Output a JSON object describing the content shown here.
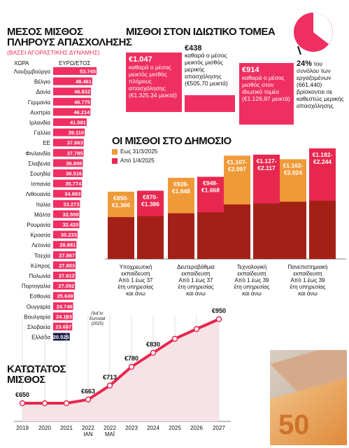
{
  "colors": {
    "pink": "#ef2f62",
    "orange": "#ef9a38",
    "darkred": "#a32017",
    "barpink": "#e8274f",
    "blue": "#1a1a4a"
  },
  "left_panel": {
    "title_line1": "ΜΕΣΟΣ ΜΙΣΘΟΣ",
    "title_line2": "ΠΛΗΡΟΥΣ ΑΠΑΣΧΟΛΗΣΗΣ",
    "subtitle": "(ΒΑΣΕΙ ΑΓΟΡΑΣΤΙΚΗΣ ΔΥΝΑΜΗΣ)",
    "col_country": "ΧΩΡΑ",
    "col_value": "ΕΥΡΩ/ΕΤΟΣ",
    "source_label": "ΠΗΓΗ:",
    "source_name": "Eurostat",
    "source_year": "(2025)"
  },
  "private_panel": {
    "title": "ΜΙΣΘΟΙ ΣΤΟΝ ΙΔΙΩΤΙΚΟ ΤΟΜΕΑ",
    "box1_value": "€1.047",
    "box1_text": "καθαρά ο μέσος μεικτός μισθός πλήρους απασχόλησης (€1.325,34 μεικτά)",
    "box2_value": "€438",
    "box2_text": "καθαρά ο μέσος μεικτός μισθός μερικής απασχόλησης (€505,70 μεικτά)",
    "box3_value": "€914",
    "box3_text": "καθαρά ο μέσος μισθός στον ιδιωτικό τομέα (€1.126,97 μεικτά)",
    "pct_value": "24%",
    "pct_text": "του συνόλου των εργαζομένων (661.440) βρίσκονται σε καθεστώς μερικής απασχόλησης"
  },
  "public_panel": {
    "title": "ΟΙ ΜΙΣΘΟΙ ΣΤΟ ΔΗΜΟΣΙΟ",
    "legend_until": "Εως 31/3/2025",
    "legend_from": "Από 1/4/2025"
  },
  "min_wage_panel": {
    "title_line1": "ΚΑΤΩΤΑΤΟΣ",
    "title_line2": "ΜΙΣΘΟΣ"
  },
  "chart_data": [
    {
      "type": "bar",
      "orientation": "horizontal",
      "categories": [
        "Λουξεμβούργο",
        "Βέλγιο",
        "Δανία",
        "Γερμανία",
        "Αυστρία",
        "Ιρλανδία",
        "Γαλλία",
        "ΕΕ",
        "Φινλανδία",
        "Σλοβενία",
        "Σουηδία",
        "Ισπανία",
        "Λιθουανία",
        "Ιταλία",
        "Μάλτα",
        "Ρουμανία",
        "Κροατία",
        "Λετονία",
        "Τσεχία",
        "Κύπρος",
        "Πολωνία",
        "Πορτογαλία",
        "Εσθονία",
        "Ουγγαρία",
        "Βουλγαρία",
        "Σλοβακία",
        "Ελλάδα"
      ],
      "labels": [
        "53.745",
        "48.461",
        "46.832",
        "46.775",
        "46.214",
        "41.581",
        "39.110",
        "37.863",
        "37.785",
        "36.806",
        "36.516",
        "35.774",
        "34.893",
        "33.273",
        "32.508",
        "32.420",
        "30.233",
        "28.881",
        "27.867",
        "27.803",
        "27.612",
        "27.092",
        "25.649",
        "24.746",
        "24.193",
        "23.647",
        "20.525"
      ],
      "values": [
        53745,
        48461,
        46832,
        46775,
        46214,
        41581,
        39110,
        37863,
        37785,
        36806,
        36516,
        35774,
        34893,
        33273,
        32508,
        32420,
        30233,
        28881,
        27867,
        27803,
        27612,
        27092,
        25649,
        24746,
        24193,
        23647,
        20525
      ],
      "xlim": [
        0,
        53745
      ]
    },
    {
      "type": "bar",
      "categories": [
        "Υποχρεωτική εκπαίδευση Από 1 έως 37 έτη υπηρεσίας και άνω",
        "Δευτεροβάθμια εκπαίδευση Από 1 έως 37 έτη υπηρεσίας και άνω",
        "Τεχνολογική εκπαίδευση Από 1 έως 39 έτη υπηρεσίας και άνω",
        "Πανεπιστημιακή εκπαίδευση Από 1 έως 39 έτη υπηρεσίας και άνω"
      ],
      "category_lines": [
        [
          "Υποχρεωτική",
          "εκπαίδευση",
          "Από 1 έως 37",
          "έτη υπηρεσίας",
          "και άνω"
        ],
        [
          "Δευτεροβάθμια",
          "εκπαίδευση",
          "Από 1 έως 37",
          "έτη υπηρεσίας",
          "και άνω"
        ],
        [
          "Τεχνολογική",
          "εκπαίδευση",
          "Από 1 έως 39",
          "έτη υπηρεσίας",
          "και άνω"
        ],
        [
          "Πανεπιστημιακή",
          "εκπαίδευση",
          "Από 1 έως 39",
          "έτη υπηρεσίας",
          "και άνω"
        ]
      ],
      "series": [
        {
          "name": "Εως 31/3/2025",
          "low": [
            850,
            928,
            1107,
            1162
          ],
          "high": [
            1366,
            1648,
            2097,
            2024
          ],
          "labels": [
            [
              "€850-",
              "€1.366"
            ],
            [
              "€928-",
              "€1.648"
            ],
            [
              "€1.107-",
              "€2.097"
            ],
            [
              "€1.162-",
              "€2.024"
            ]
          ]
        },
        {
          "name": "Από 1/4/2025",
          "low": [
            870,
            948,
            1127,
            1182
          ],
          "high": [
            1386,
            1668,
            2117,
            2244
          ],
          "labels": [
            [
              "€870-",
              "€1.386"
            ],
            [
              "€948-",
              "€1.668"
            ],
            [
              "€1.127-",
              "€2.117"
            ],
            [
              "€1.182-",
              "€2.244"
            ]
          ]
        }
      ]
    },
    {
      "type": "line",
      "x": [
        "2019",
        "2020",
        "2021",
        "2022 ΙΑΝ",
        "2022 ΜΑΪ",
        "2023",
        "2024",
        "2025",
        "2026",
        "2027"
      ],
      "xtick_lines": [
        [
          "2019"
        ],
        [
          "2020"
        ],
        [
          "2021"
        ],
        [
          "2022",
          "ΙΑΝ"
        ],
        [
          "2022",
          "ΜΑΪ"
        ],
        [
          "2023"
        ],
        [
          "2024"
        ],
        [
          "2025"
        ],
        [
          "2026"
        ],
        [
          "2027"
        ]
      ],
      "values": [
        650,
        650,
        650,
        663,
        713,
        780,
        830,
        880,
        915,
        950
      ],
      "point_labels": [
        {
          "i": 0,
          "text": "€650"
        },
        {
          "i": 3,
          "text": "€663"
        },
        {
          "i": 4,
          "text": "€713"
        },
        {
          "i": 5,
          "text": "€780"
        },
        {
          "i": 6,
          "text": "€830"
        },
        {
          "i": 9,
          "text": "€950"
        }
      ]
    }
  ]
}
